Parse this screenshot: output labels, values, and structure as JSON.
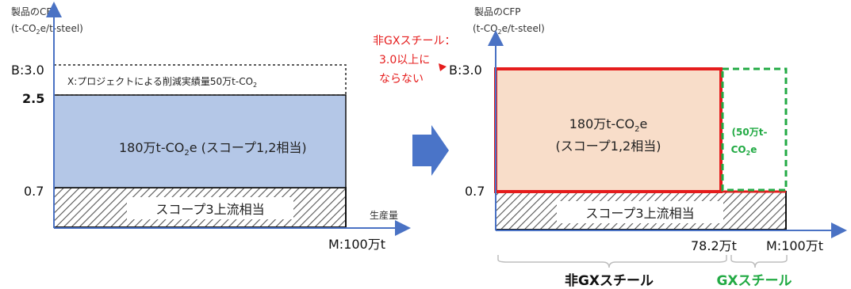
{
  "left": {
    "yaxis_title": "製品のCFP",
    "yaxis_unit_a": "(t-CO",
    "yaxis_unit_sub": "2",
    "yaxis_unit_b": "e/t-steel)",
    "tick_b": "B:3.0",
    "tick_25": "2.5",
    "tick_07": "0.7",
    "xaxis_title": "生産量",
    "x_max_label": "M:100万t",
    "dashed_label_a": "X:プロジェクトによる削減実績量50万t-CO",
    "dashed_label_sub": "2",
    "blue_label_a": "180万t-CO",
    "blue_label_sub": "2",
    "blue_label_b": "e (スコープ1,2相当)",
    "hatched_label": "スコープ3上流相当"
  },
  "right": {
    "yaxis_title": "製品のCFP",
    "yaxis_unit_a": "(t-CO",
    "yaxis_unit_sub": "2",
    "yaxis_unit_b": "e/t-steel)",
    "tick_b": "B:3.0",
    "tick_07": "0.7",
    "x_mid_label": "78.2万t",
    "x_max_label": "M:100万t",
    "red_label_line1_a": "180万t-CO",
    "red_label_line1_sub": "2",
    "red_label_line1_b": "e",
    "red_label_line2": "(スコープ1,2相当)",
    "green_label_line1": "(50万t-",
    "green_label_line2_a": "CO",
    "green_label_line2_sub": "2",
    "green_label_line2_b": "e",
    "hatched_label": "スコープ3上流相当",
    "callout_line1": "非GXスチール：",
    "callout_line2": "3.0以上に",
    "callout_line3": "ならない",
    "bracket_left_label": "非GXスチール",
    "bracket_right_label": "GXスチール"
  },
  "colors": {
    "axis": "#4a72c4",
    "blue_fill": "#b4c7e7",
    "peach_fill": "#f8ddc9",
    "red": "#e51c1c",
    "green": "#22aa44",
    "arrow": "#4a74c8",
    "bracket": "#bdbdbd"
  }
}
